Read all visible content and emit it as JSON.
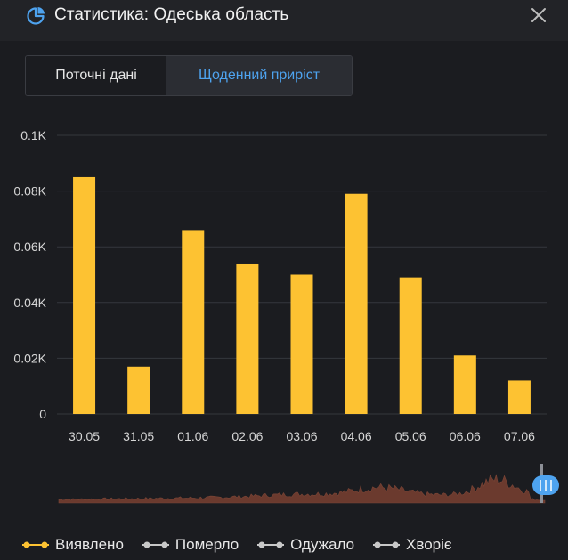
{
  "header": {
    "title": "Статистика: Одеська область",
    "close_icon": "close-icon",
    "stats_icon": "pie-chart-icon"
  },
  "tabs": [
    {
      "label": "Поточні дані",
      "active": false
    },
    {
      "label": "Щоденний приріст",
      "active": true
    }
  ],
  "colors": {
    "accent": "#4ea3ef",
    "bar": "#fdc232",
    "background": "#1b1c20",
    "grid": "#35373d",
    "navigator_area": "#6b3a2e",
    "inactive_series": "#c8c8c8"
  },
  "chart_data": {
    "type": "bar",
    "categories": [
      "30.05",
      "31.05",
      "01.06",
      "02.06",
      "03.06",
      "04.06",
      "05.06",
      "06.06",
      "07.06"
    ],
    "series": [
      {
        "name": "Виявлено",
        "values": [
          85,
          17,
          66,
          54,
          50,
          79,
          49,
          21,
          12
        ],
        "color": "#fdc232"
      }
    ],
    "y_ticks": [
      "0",
      "0.02K",
      "0.04K",
      "0.06K",
      "0.08K",
      "0.1K"
    ],
    "ylim": [
      0,
      100
    ],
    "grid": true,
    "legend_position": "bottom-left",
    "navigator": true
  },
  "legend": [
    {
      "label": "Виявлено",
      "active": true,
      "color": "#fdc232"
    },
    {
      "label": "Померло",
      "active": false,
      "color": "#c8c8c8"
    },
    {
      "label": "Одужало",
      "active": false,
      "color": "#c8c8c8"
    },
    {
      "label": "Хворіє",
      "active": false,
      "color": "#c8c8c8"
    }
  ]
}
